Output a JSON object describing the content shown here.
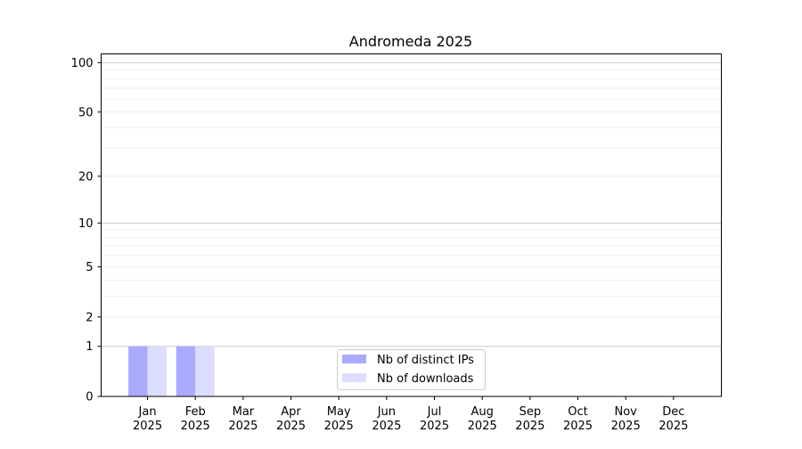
{
  "chart_data": {
    "type": "bar",
    "title": "Andromeda 2025",
    "xlabel": "",
    "ylabel": "",
    "y_scale": "log(1+y)",
    "ylim": [
      0,
      113
    ],
    "y_ticks": [
      0,
      1,
      2,
      5,
      10,
      20,
      50,
      100
    ],
    "y_major_grid": [
      1,
      10,
      100
    ],
    "y_minor_grid": [
      2,
      3,
      4,
      5,
      6,
      7,
      8,
      9,
      20,
      30,
      40,
      50,
      60,
      70,
      80,
      90
    ],
    "grid": true,
    "legend_placement": "lower-center",
    "categories": [
      [
        "Jan",
        "2025"
      ],
      [
        "Feb",
        "2025"
      ],
      [
        "Mar",
        "2025"
      ],
      [
        "Apr",
        "2025"
      ],
      [
        "May",
        "2025"
      ],
      [
        "Jun",
        "2025"
      ],
      [
        "Jul",
        "2025"
      ],
      [
        "Aug",
        "2025"
      ],
      [
        "Sep",
        "2025"
      ],
      [
        "Oct",
        "2025"
      ],
      [
        "Nov",
        "2025"
      ],
      [
        "Dec",
        "2025"
      ]
    ],
    "series": [
      {
        "name": "Nb of distinct IPs",
        "color": "#aaaaff",
        "values": [
          1,
          1,
          0,
          0,
          0,
          0,
          0,
          0,
          0,
          0,
          0,
          0
        ]
      },
      {
        "name": "Nb of downloads",
        "color": "#ddddff",
        "values": [
          1,
          1,
          0,
          0,
          0,
          0,
          0,
          0,
          0,
          0,
          0,
          0
        ]
      }
    ]
  }
}
